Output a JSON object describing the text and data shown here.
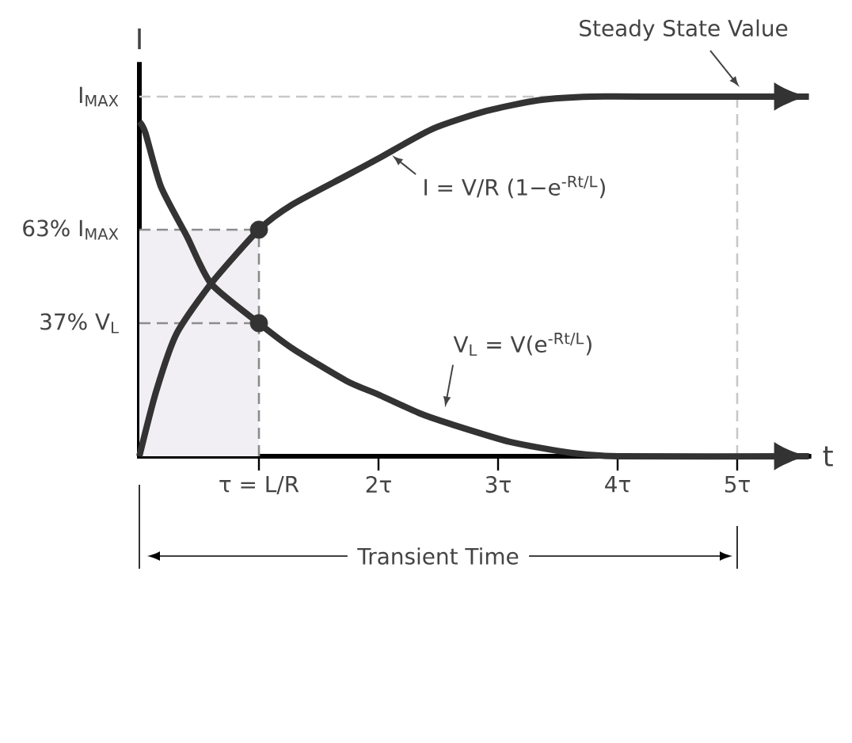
{
  "chart_data": {
    "type": "line",
    "xlabel": "t",
    "ylabel": "I",
    "xlim": [
      0,
      5.6
    ],
    "ylim": [
      0,
      1.09
    ],
    "xticks": [
      {
        "value": 1,
        "label": "τ = L/R"
      },
      {
        "value": 2,
        "label": "2τ"
      },
      {
        "value": 3,
        "label": "3τ"
      },
      {
        "value": 4,
        "label": "4τ"
      },
      {
        "value": 5,
        "label": "5τ"
      }
    ],
    "yticks": [
      {
        "value": 0.37,
        "label": "37% V$_{L}$"
      },
      {
        "value": 0.63,
        "label": "63% I$_{MAX}$"
      },
      {
        "value": 1,
        "label": "I$_{MAX}$"
      }
    ],
    "series": [
      {
        "color": "#333333",
        "x": [
          0,
          0.14,
          0.31,
          0.6,
          1,
          1.28,
          1.73,
          2.01,
          2.45,
          2.9,
          3.34,
          3.78,
          4.44,
          5.6
        ],
        "values": [
          0,
          0.18,
          0.34,
          0.48,
          0.63,
          0.7,
          0.78,
          0.83,
          0.91,
          0.96,
          0.99,
          1,
          1,
          1
        ]
      },
      {
        "color": "#333333",
        "x": [
          0,
          0.05,
          0.18,
          0.4,
          0.6,
          1,
          1.28,
          1.73,
          2.01,
          2.34,
          2.6,
          3.1,
          3.6,
          4,
          5.6
        ],
        "values": [
          0.93,
          0.9,
          0.75,
          0.61,
          0.48,
          0.37,
          0.3,
          0.21,
          0.17,
          0.12,
          0.09,
          0.04,
          0.01,
          0,
          0
        ]
      },
      {
        "type": "scatter",
        "marker": "circle",
        "color": "#333333",
        "x": [
          1,
          1
        ],
        "values": [
          0.63,
          0.37
        ]
      }
    ],
    "ref_lines": [
      {
        "axis": "y",
        "value": 1,
        "color": "#c8c8c8",
        "line_style": "dashed"
      },
      {
        "axis": "x",
        "value": 5,
        "color": "#c8c8c8",
        "line_style": "dashed"
      },
      {
        "axis": "y",
        "value": 0.63,
        "color": "#8c8c8c",
        "line_style": "dashed"
      },
      {
        "axis": "y",
        "value": 0.37,
        "color": "#8c8c8c",
        "line_style": "dashed"
      },
      {
        "axis": "x",
        "value": 1,
        "color": "#8c8c8c",
        "line_style": "dashed"
      }
    ],
    "bands": [
      {
        "axis": "x",
        "from": 0,
        "to": 1,
        "color": "#f1eff4"
      }
    ],
    "annotations": [
      {
        "text": "Steady State Value",
        "x": 5,
        "y": 1
      },
      {
        "text": "I = V/R (1−e$^{-Rt/L}$)",
        "x": 2.1,
        "y": 0.85
      },
      {
        "text": "V$_{L}$ = V(e$^{-Rt/L}$)",
        "x": 2.55,
        "y": 0.1
      },
      "Transient Time"
    ]
  }
}
